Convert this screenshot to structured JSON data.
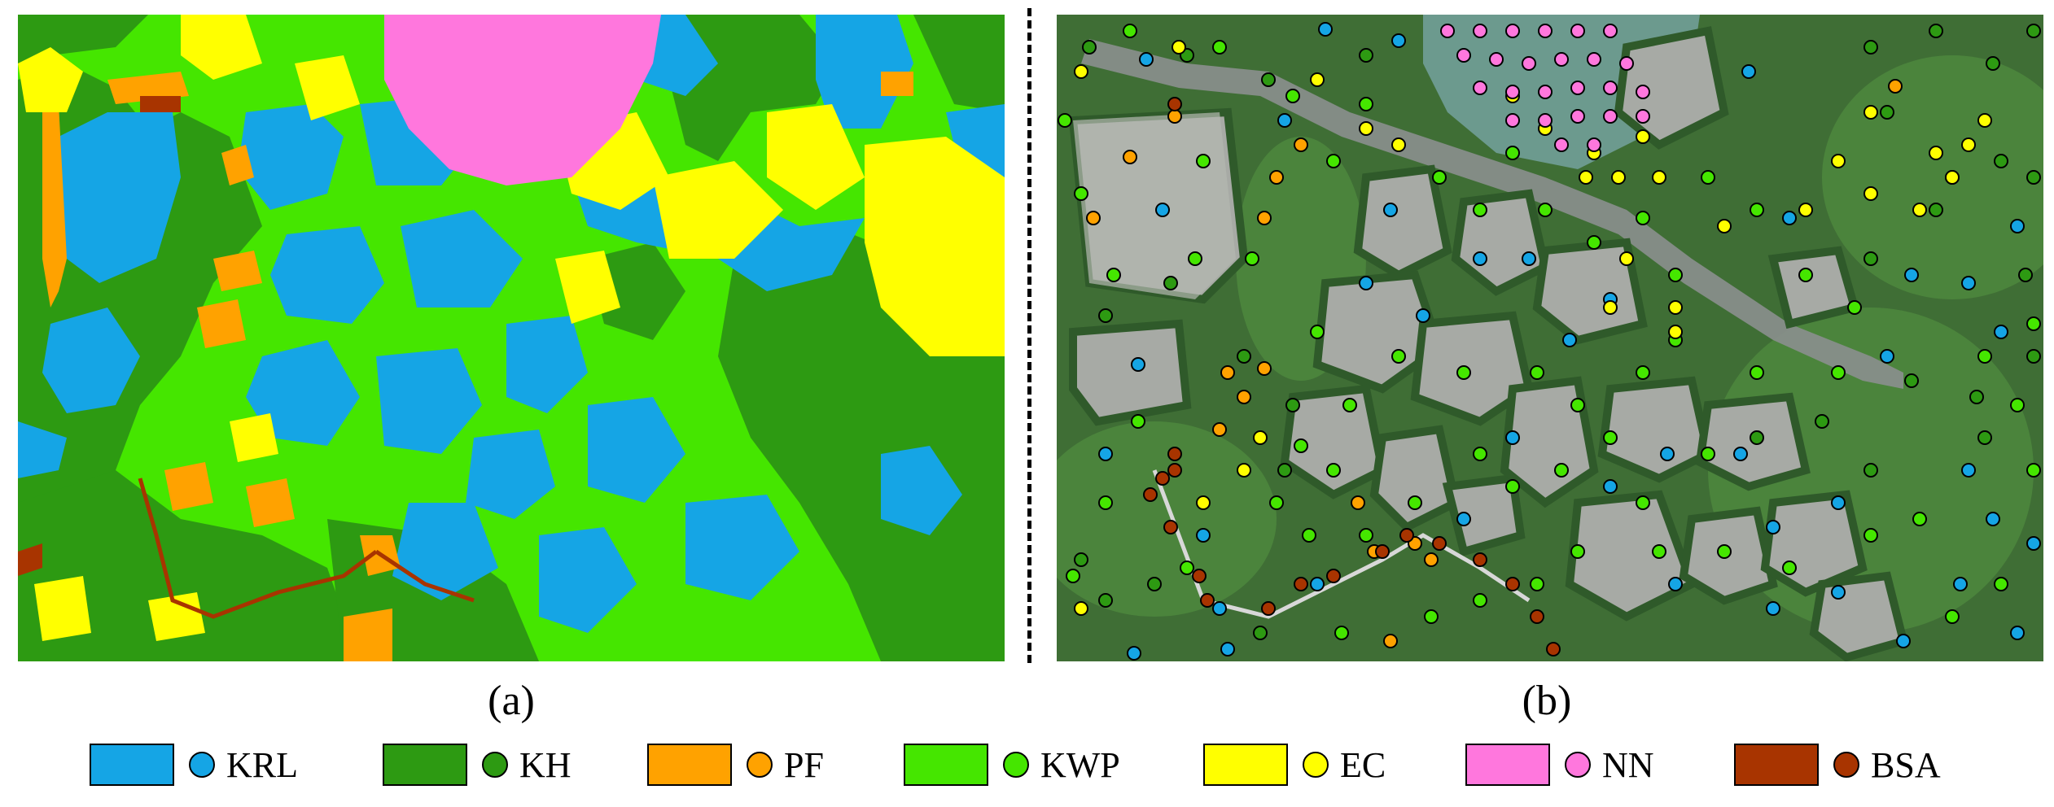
{
  "panels": {
    "a": {
      "label": "(a)"
    },
    "b": {
      "label": "(b)"
    }
  },
  "legend": [
    {
      "code": "KRL",
      "color": "#15a5e5"
    },
    {
      "code": "KH",
      "color": "#2d9a12"
    },
    {
      "code": "PF",
      "color": "#ffa200"
    },
    {
      "code": "KWP",
      "color": "#45e600"
    },
    {
      "code": "EC",
      "color": "#ffff00"
    },
    {
      "code": "NN",
      "color": "#ff77dd"
    },
    {
      "code": "BSA",
      "color": "#a83400"
    }
  ]
}
